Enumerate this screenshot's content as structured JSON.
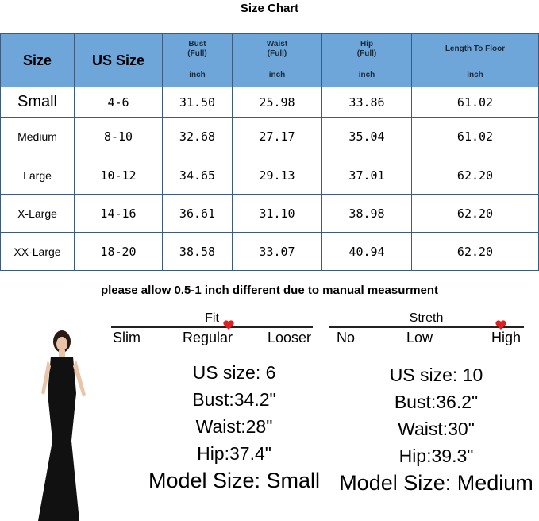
{
  "title": "Size Chart",
  "table": {
    "headers": {
      "size": "Size",
      "us_size": "US Size",
      "bust": "Bust",
      "waist": "Waist",
      "hip": "Hip",
      "full": "(Full)",
      "length": "Length To Floor",
      "unit": "inch"
    },
    "rows": [
      [
        "Small",
        "4-6",
        "31.50",
        "25.98",
        "33.86",
        "61.02"
      ],
      [
        "Medium",
        "8-10",
        "32.68",
        "27.17",
        "35.04",
        "61.02"
      ],
      [
        "Large",
        "10-12",
        "34.65",
        "29.13",
        "37.01",
        "62.20"
      ],
      [
        "X-Large",
        "14-16",
        "36.61",
        "31.10",
        "38.98",
        "62.20"
      ],
      [
        "XX-Large",
        "18-20",
        "38.58",
        "33.07",
        "40.94",
        "62.20"
      ]
    ]
  },
  "note": "please allow 0.5-1 inch different due to manual  measurment",
  "fit": {
    "label": "Fit",
    "options": [
      "Slim",
      "Regular",
      "Looser"
    ],
    "selected": "Regular"
  },
  "stretch": {
    "label": "Streth",
    "options": [
      "No",
      "Low",
      "High"
    ],
    "selected": "High"
  },
  "models": [
    {
      "us_size": "US size: 6",
      "bust": "Bust:34.2\"",
      "waist": "Waist:28\"",
      "hip": "Hip:37.4\"",
      "model_size": "Model Size: Small"
    },
    {
      "us_size": "US size: 10",
      "bust": "Bust:36.2\"",
      "waist": "Waist:30\"",
      "hip": "Hip:39.3\"",
      "model_size": "Model Size: Medium"
    }
  ],
  "colors": {
    "header": "#6fa6d9",
    "heart": "#e02020"
  }
}
